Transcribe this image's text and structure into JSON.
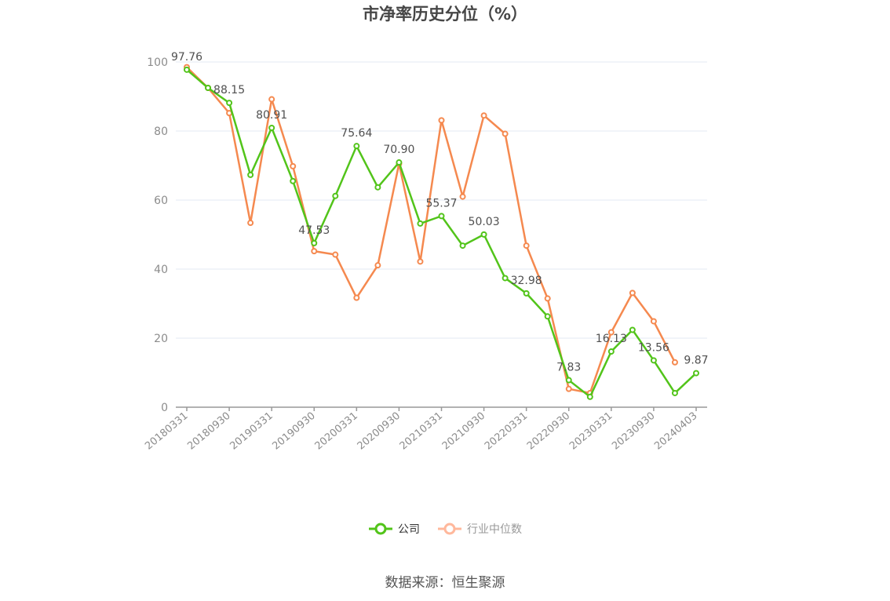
{
  "title": "市净率历史分位（%）",
  "source": "数据来源：恒生聚源",
  "legend": [
    {
      "label": "公司",
      "color": "#52c41a",
      "text_color": "#333333"
    },
    {
      "label": "行业中位数",
      "color": "#ffb89c",
      "text_color": "#999999"
    }
  ],
  "chart_data": {
    "type": "line",
    "title": "市净率历史分位（%）",
    "xlabel": "",
    "ylabel": "",
    "ylim": [
      0,
      100
    ],
    "yticks": [
      0,
      20,
      40,
      60,
      80,
      100
    ],
    "grid": true,
    "legend_position": "bottom",
    "x_tick_labels": [
      "20180331",
      "20180930",
      "20190331",
      "20190930",
      "20200331",
      "20200930",
      "20210331",
      "20210930",
      "20220331",
      "20220930",
      "20230331",
      "20230930",
      "20240403"
    ],
    "x_tick_indices": [
      0,
      2,
      4,
      6,
      8,
      10,
      12,
      14,
      16,
      18,
      20,
      22,
      24
    ],
    "point_count": 25,
    "series": [
      {
        "name": "公司",
        "color": "#52c41a",
        "values": [
          97.76,
          92.5,
          88.15,
          67.3,
          80.91,
          65.5,
          47.53,
          61.2,
          75.64,
          63.7,
          70.9,
          53.2,
          55.37,
          46.8,
          50.03,
          37.4,
          32.98,
          26.3,
          7.83,
          3.0,
          16.13,
          22.4,
          13.56,
          4.1,
          9.87
        ],
        "labeled_indices": [
          0,
          2,
          4,
          6,
          8,
          10,
          12,
          14,
          16,
          18,
          20,
          22,
          24
        ]
      },
      {
        "name": "行业中位数",
        "color": "#f5894f",
        "values": [
          98.5,
          92.5,
          85.2,
          53.4,
          89.2,
          69.8,
          45.2,
          44.2,
          31.7,
          41.1,
          70.5,
          42.2,
          83.1,
          61.0,
          84.5,
          79.2,
          46.8,
          31.5,
          5.3,
          4.1,
          21.7,
          33.1,
          24.9,
          13.0,
          null
        ]
      }
    ]
  }
}
